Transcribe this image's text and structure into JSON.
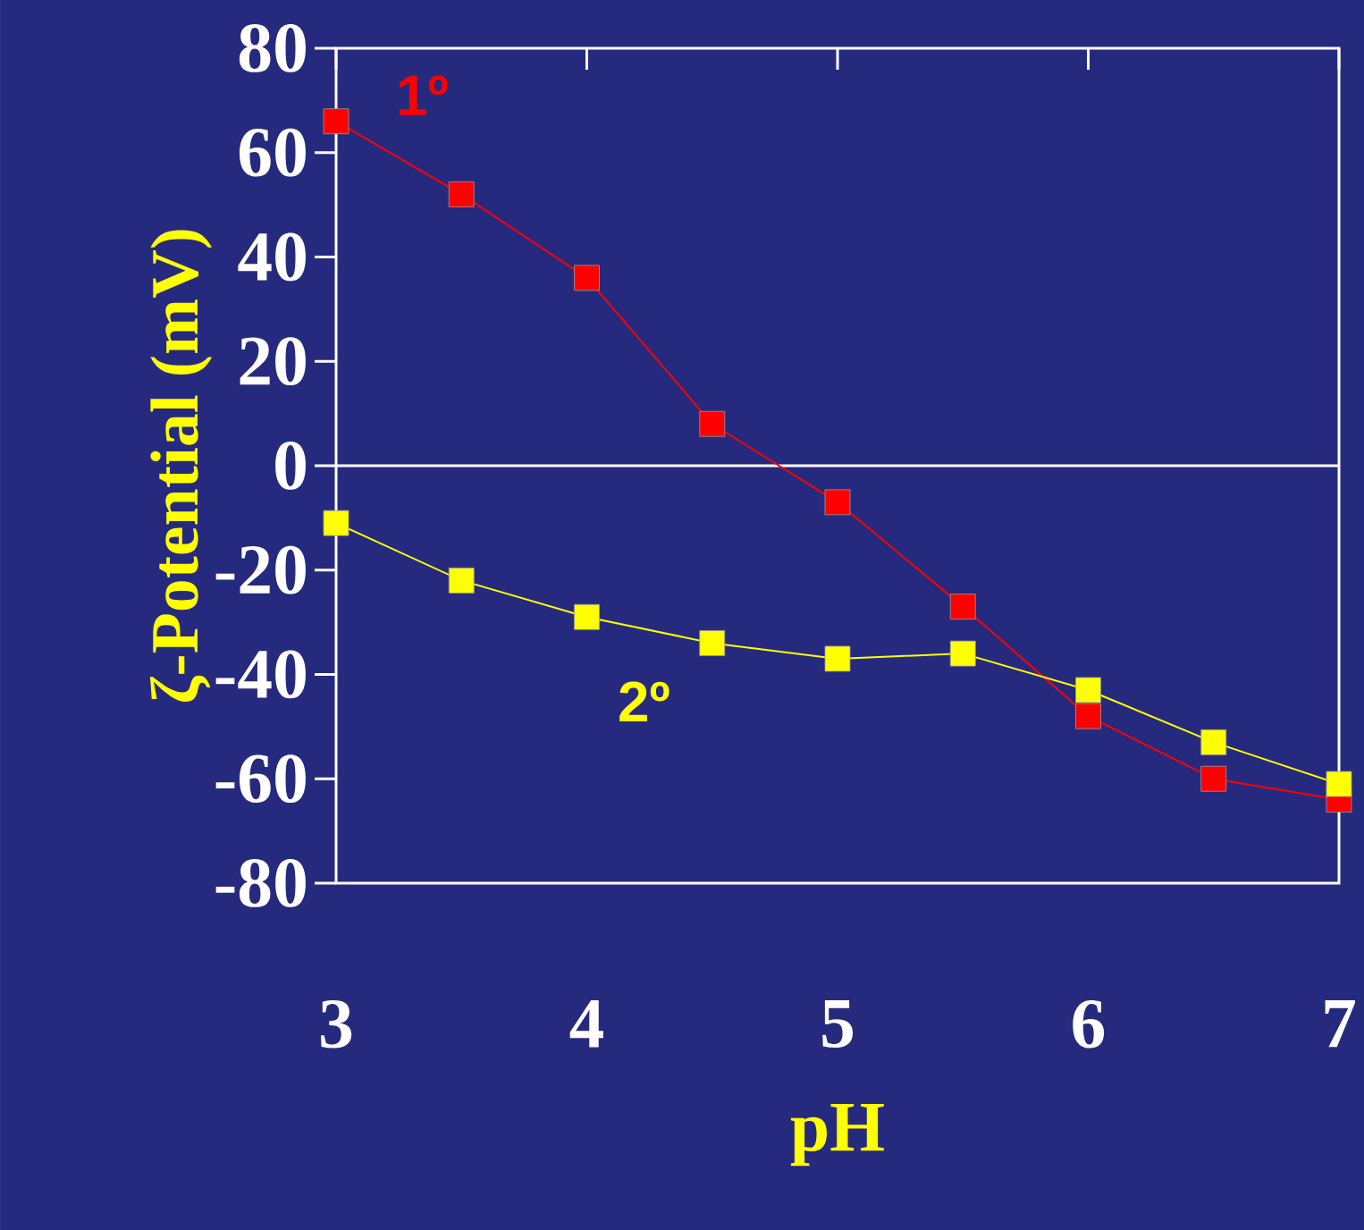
{
  "chart_data": {
    "type": "line",
    "xlabel": "pH",
    "ylabel": "ζ-Potential (mV)",
    "x": [
      3,
      3.5,
      4,
      4.5,
      5,
      5.5,
      6,
      6.5,
      7
    ],
    "series": [
      {
        "name": "1º",
        "color": "#ff0000",
        "values": [
          66,
          52,
          36,
          8,
          -7,
          -27,
          -48,
          -60,
          -64
        ]
      },
      {
        "name": "2º",
        "color": "#ffff00",
        "values": [
          -11,
          -22,
          -29,
          -34,
          -37,
          -36,
          -43,
          -53,
          -61
        ]
      }
    ],
    "xlim": [
      3,
      7
    ],
    "xticks": [
      3,
      4,
      5,
      6,
      7
    ],
    "ylim": [
      -80,
      80
    ],
    "yticks": [
      -80,
      -60,
      -40,
      -20,
      0,
      20,
      40,
      60,
      80
    ],
    "ref_lines": [
      {
        "axis": "y",
        "value": 0,
        "color": "#ffffff"
      }
    ],
    "marker": "square",
    "line_style": "solid",
    "grid": false,
    "legend": false
  }
}
